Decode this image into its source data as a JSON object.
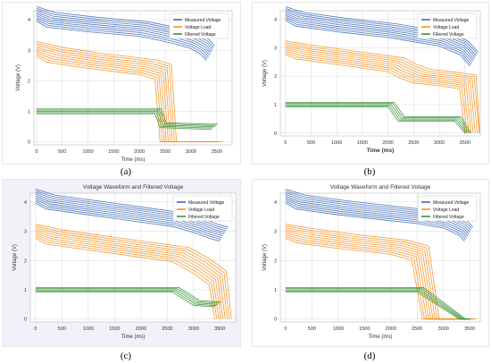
{
  "colors": {
    "measured": "#2f5fb3",
    "load": "#f28a12",
    "filtered": "#2a8a2a",
    "grid": "#d9d9d9",
    "frame": "#e8e8e8"
  },
  "chart_data": [
    {
      "type": "line",
      "caption": "(a)",
      "title": "",
      "xlabel": "Time (ms)",
      "ylabel": "Voltage (V)",
      "xlim": [
        -50,
        3800
      ],
      "ylim": [
        -0.1,
        4.3
      ],
      "xticks": [
        "0",
        "500",
        "1000",
        "1500",
        "2000",
        "2500",
        "3000",
        "3500"
      ],
      "yticks": [
        "0",
        "1",
        "2",
        "3",
        "4"
      ],
      "legend": [
        "Measured Voltage",
        "Voltage Load",
        "Filtered Voltage"
      ],
      "legend_position": "top-right",
      "grid": true,
      "series": [
        {
          "name": "Measured Voltage",
          "x": [
            0,
            200,
            1000,
            2000,
            2300,
            2700,
            3000,
            3200,
            3300
          ],
          "y": [
            4.2,
            4.0,
            3.85,
            3.7,
            3.6,
            3.45,
            3.3,
            3.1,
            2.9
          ]
        },
        {
          "name": "Voltage Load",
          "x": [
            0,
            200,
            1000,
            2000,
            2300,
            2400,
            2700,
            3000,
            3300
          ],
          "y": [
            3.05,
            2.85,
            2.65,
            2.45,
            2.3,
            0.0,
            0.0,
            0.0,
            0.0
          ]
        },
        {
          "name": "Filtered Voltage",
          "x": [
            0,
            2300,
            2400,
            3200,
            3400
          ],
          "y": [
            1.0,
            1.0,
            0.55,
            0.5,
            0.5
          ]
        }
      ]
    },
    {
      "type": "line",
      "caption": "(b)",
      "title": "",
      "xlabel": "Time (ms)",
      "ylabel": "Voltage (V)",
      "xlim": [
        -100,
        3800
      ],
      "ylim": [
        -0.1,
        4.3
      ],
      "xticks": [
        "0",
        "500",
        "1000",
        "1500",
        "2000",
        "2500",
        "3000",
        "3500"
      ],
      "yticks": [
        "0",
        "1",
        "2",
        "3",
        "4"
      ],
      "legend": [
        "Measured Voltage",
        "Voltage Load",
        "Filtered Voltage"
      ],
      "legend_position": "top-right",
      "grid": true,
      "series": [
        {
          "name": "Measured Voltage",
          "x": [
            0,
            200,
            1000,
            2000,
            2500,
            3000,
            3400,
            3600
          ],
          "y": [
            4.2,
            4.0,
            3.8,
            3.6,
            3.45,
            3.3,
            3.0,
            2.6
          ]
        },
        {
          "name": "Voltage Load",
          "x": [
            0,
            200,
            1000,
            2000,
            2200,
            2500,
            3000,
            3400,
            3500
          ],
          "y": [
            3.0,
            2.85,
            2.65,
            2.4,
            2.2,
            2.0,
            1.9,
            1.8,
            0.0
          ]
        },
        {
          "name": "Filtered Voltage",
          "x": [
            0,
            1000,
            2000,
            2200,
            3300,
            3500
          ],
          "y": [
            1.0,
            1.0,
            1.0,
            0.5,
            0.5,
            0.0
          ]
        }
      ]
    },
    {
      "type": "line",
      "caption": "(c)",
      "title": "Voltage Waveform and Filtered Voltage",
      "xlabel": "Time (ms)",
      "ylabel": "Voltage (V)",
      "xlim": [
        -100,
        3800
      ],
      "ylim": [
        -0.1,
        4.3
      ],
      "xticks": [
        "0",
        "500",
        "1000",
        "1500",
        "2000",
        "2500",
        "3000",
        "3500"
      ],
      "yticks": [
        "0",
        "1",
        "2",
        "3",
        "4"
      ],
      "legend": [
        "Measured Voltage",
        "Voltage Load",
        "Filtered Voltage"
      ],
      "legend_position": "top-right",
      "grid": true,
      "series": [
        {
          "name": "Measured Voltage",
          "x": [
            0,
            200,
            1000,
            2000,
            2600,
            3000,
            3300,
            3500
          ],
          "y": [
            4.2,
            4.0,
            3.8,
            3.55,
            3.4,
            3.2,
            3.0,
            2.9
          ]
        },
        {
          "name": "Voltage Load",
          "x": [
            0,
            200,
            1000,
            2000,
            2600,
            3000,
            3300,
            3400
          ],
          "y": [
            3.0,
            2.8,
            2.6,
            2.35,
            2.2,
            1.8,
            1.4,
            0.0
          ]
        },
        {
          "name": "Filtered Voltage",
          "x": [
            0,
            1000,
            2600,
            3000,
            3400
          ],
          "y": [
            1.0,
            1.0,
            1.0,
            0.55,
            0.5
          ]
        }
      ]
    },
    {
      "type": "line",
      "caption": "(d)",
      "title": "Voltage Waveform and Filtered Voltage",
      "xlabel": "Time (ms)",
      "ylabel": "Voltage (V)",
      "xlim": [
        -100,
        3700
      ],
      "ylim": [
        -0.1,
        4.3
      ],
      "xticks": [
        "0",
        "500",
        "1000",
        "1500",
        "2000",
        "2500",
        "3000",
        "3500"
      ],
      "yticks": [
        "0",
        "1",
        "2",
        "3",
        "4"
      ],
      "legend": [
        "Measured Voltage",
        "Voltage Load",
        "Filtered Voltage"
      ],
      "legend_position": "top-right",
      "grid": true,
      "series": [
        {
          "name": "Measured Voltage",
          "x": [
            0,
            200,
            1000,
            2000,
            2500,
            3000,
            3300,
            3400
          ],
          "y": [
            4.2,
            4.0,
            3.8,
            3.6,
            3.5,
            3.35,
            3.1,
            2.9
          ]
        },
        {
          "name": "Voltage Load",
          "x": [
            0,
            200,
            1000,
            2000,
            2400,
            2600,
            3000,
            3300
          ],
          "y": [
            3.0,
            2.85,
            2.65,
            2.45,
            2.25,
            0.0,
            0.0,
            0.0
          ]
        },
        {
          "name": "Filtered Voltage",
          "x": [
            0,
            2500,
            3300,
            3400
          ],
          "y": [
            1.0,
            1.0,
            0.0,
            0.0
          ]
        }
      ]
    }
  ]
}
